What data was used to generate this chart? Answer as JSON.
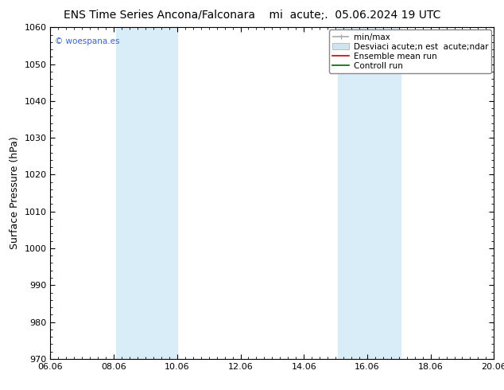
{
  "title_left": "ENS Time Series Ancona/Falconara",
  "title_right": "mi  acute;.  05.06.2024 19 UTC",
  "ylabel": "Surface Pressure (hPa)",
  "ylim": [
    970,
    1060
  ],
  "yticks": [
    970,
    980,
    990,
    1000,
    1010,
    1020,
    1030,
    1040,
    1050,
    1060
  ],
  "xlim": [
    0,
    14
  ],
  "xtick_labels": [
    "06.06",
    "08.06",
    "10.06",
    "12.06",
    "14.06",
    "16.06",
    "18.06",
    "20.06"
  ],
  "xtick_positions": [
    0,
    2,
    4,
    6,
    8,
    10,
    12,
    14
  ],
  "shade_bands": [
    {
      "xmin": 2.067,
      "xmax": 4.0
    },
    {
      "xmin": 9.067,
      "xmax": 11.067
    }
  ],
  "shade_color": "#d8edf8",
  "watermark": "© woespana.es",
  "legend_minmax_label": "min/max",
  "legend_std_label": "Desviaci acute;n est  acute;ndar",
  "legend_ens_label": "Ensemble mean run",
  "legend_ctrl_label": "Controll run",
  "legend_minmax_color": "#aaaaaa",
  "legend_std_color": "#d0e4f0",
  "legend_ens_color": "#cc0000",
  "legend_ctrl_color": "#006600",
  "bg_color": "#ffffff",
  "title_fontsize": 10,
  "tick_fontsize": 8,
  "ylabel_fontsize": 9,
  "legend_fontsize": 7.5
}
